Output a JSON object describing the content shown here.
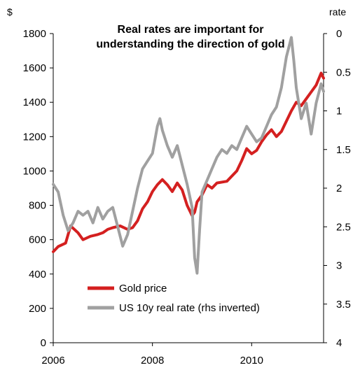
{
  "chart_data": {
    "type": "line",
    "title_lines": [
      "Real rates are important for",
      "understanding the direction of gold"
    ],
    "left_unit": "$",
    "right_unit": "rate",
    "x_ticks": [
      {
        "value": 2006,
        "label": "2006"
      },
      {
        "value": 2008,
        "label": "2008"
      },
      {
        "value": 2010,
        "label": "2010"
      }
    ],
    "xlim": [
      2006,
      2011.45
    ],
    "ylim_left": [
      0,
      1800
    ],
    "ylim_right": [
      0,
      4
    ],
    "right_inverted": true,
    "y_left_ticks": [
      0,
      200,
      400,
      600,
      800,
      1000,
      1200,
      1400,
      1600,
      1800
    ],
    "y_right_ticks": [
      0,
      0.5,
      1,
      1.5,
      2,
      2.5,
      3,
      3.5,
      4
    ],
    "y_right_tick_labels": [
      "0",
      "0.5",
      "1",
      "1.5",
      "2",
      "2.5",
      "3",
      "3.5",
      "4"
    ],
    "legend_position": "bottom-left",
    "series": [
      {
        "name": "Gold price",
        "axis": "left",
        "color": "#d42020",
        "x": [
          2006.0,
          2006.1,
          2006.25,
          2006.35,
          2006.5,
          2006.6,
          2006.75,
          2006.9,
          2007.0,
          2007.1,
          2007.2,
          2007.35,
          2007.5,
          2007.6,
          2007.7,
          2007.8,
          2007.9,
          2008.0,
          2008.1,
          2008.2,
          2008.3,
          2008.4,
          2008.5,
          2008.6,
          2008.7,
          2008.8,
          2008.85,
          2008.9,
          2009.0,
          2009.1,
          2009.2,
          2009.3,
          2009.5,
          2009.7,
          2009.8,
          2009.9,
          2010.0,
          2010.1,
          2010.2,
          2010.3,
          2010.4,
          2010.5,
          2010.6,
          2010.7,
          2010.8,
          2010.9,
          2011.0,
          2011.1,
          2011.2,
          2011.3,
          2011.4,
          2011.45
        ],
        "values": [
          530,
          560,
          580,
          680,
          640,
          600,
          620,
          630,
          640,
          660,
          670,
          680,
          660,
          670,
          710,
          780,
          820,
          880,
          920,
          950,
          920,
          880,
          930,
          890,
          800,
          740,
          760,
          820,
          860,
          920,
          900,
          930,
          940,
          1000,
          1060,
          1130,
          1100,
          1120,
          1170,
          1210,
          1240,
          1200,
          1230,
          1290,
          1350,
          1400,
          1380,
          1420,
          1460,
          1500,
          1570,
          1540
        ]
      },
      {
        "name": "US 10y real rate (rhs inverted)",
        "axis": "right",
        "color": "#a0a0a0",
        "x": [
          2006.0,
          2006.1,
          2006.2,
          2006.3,
          2006.4,
          2006.5,
          2006.6,
          2006.7,
          2006.8,
          2006.9,
          2007.0,
          2007.1,
          2007.2,
          2007.3,
          2007.4,
          2007.5,
          2007.6,
          2007.7,
          2007.8,
          2007.9,
          2008.0,
          2008.1,
          2008.15,
          2008.2,
          2008.3,
          2008.4,
          2008.5,
          2008.6,
          2008.7,
          2008.8,
          2008.85,
          2008.9,
          2008.95,
          2009.0,
          2009.1,
          2009.2,
          2009.3,
          2009.4,
          2009.5,
          2009.6,
          2009.7,
          2009.8,
          2009.9,
          2010.0,
          2010.1,
          2010.2,
          2010.3,
          2010.4,
          2010.5,
          2010.6,
          2010.7,
          2010.8,
          2010.85,
          2010.9,
          2011.0,
          2011.1,
          2011.2,
          2011.3,
          2011.4,
          2011.45
        ],
        "values": [
          1.95,
          2.05,
          2.35,
          2.55,
          2.45,
          2.3,
          2.35,
          2.3,
          2.45,
          2.25,
          2.4,
          2.3,
          2.25,
          2.5,
          2.75,
          2.6,
          2.3,
          2.0,
          1.75,
          1.65,
          1.55,
          1.2,
          1.1,
          1.25,
          1.45,
          1.6,
          1.45,
          1.7,
          1.95,
          2.25,
          2.9,
          3.1,
          2.55,
          2.05,
          1.9,
          1.75,
          1.6,
          1.5,
          1.55,
          1.45,
          1.5,
          1.35,
          1.2,
          1.3,
          1.4,
          1.35,
          1.2,
          1.05,
          0.95,
          0.7,
          0.3,
          0.05,
          0.35,
          0.7,
          1.1,
          0.9,
          1.3,
          0.9,
          0.65,
          0.75
        ]
      }
    ]
  }
}
